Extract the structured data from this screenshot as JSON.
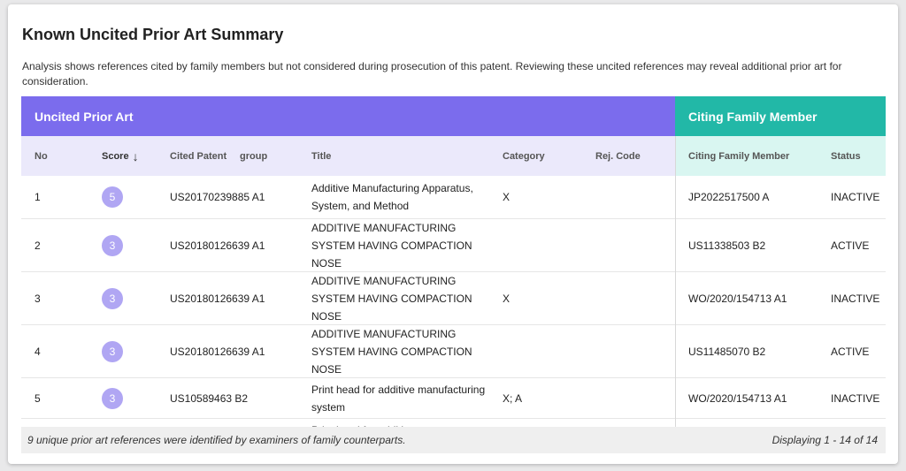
{
  "title": "Known Uncited Prior Art Summary",
  "description": "Analysis shows references cited by family members but not considered during prosecution of this patent. Reviewing these uncited references may reveal additional prior art for consideration.",
  "groups": {
    "left": "Uncited Prior Art",
    "right": "Citing Family Member"
  },
  "columns": {
    "no": "No",
    "score": "Score",
    "sort_icon": "↓",
    "cited_patent": "Cited Patent",
    "group": "group",
    "title": "Title",
    "category": "Category",
    "rej_code": "Rej. Code",
    "citing_family_member": "Citing Family Member",
    "status": "Status"
  },
  "colors": {
    "left_group": "#7b6ced",
    "right_group": "#22b8a7",
    "score_badge": "#b0a6f3"
  },
  "rows": [
    {
      "no": "1",
      "score": "5",
      "cited_patent": "US20170239885 A1",
      "title": "Additive Manufacturing Apparatus, System, and Method",
      "category": "X",
      "rej_code": "",
      "citing": "JP2022517500 A",
      "status": "INACTIVE"
    },
    {
      "no": "2",
      "score": "3",
      "cited_patent": "US20180126639 A1",
      "title": "ADDITIVE MANUFACTURING SYSTEM HAVING COMPACTION NOSE",
      "category": "",
      "rej_code": "",
      "citing": "US11338503 B2",
      "status": "ACTIVE"
    },
    {
      "no": "3",
      "score": "3",
      "cited_patent": "US20180126639 A1",
      "title": "ADDITIVE MANUFACTURING SYSTEM HAVING COMPACTION NOSE",
      "category": "X",
      "rej_code": "",
      "citing": "WO/2020/154713 A1",
      "status": "INACTIVE"
    },
    {
      "no": "4",
      "score": "3",
      "cited_patent": "US20180126639 A1",
      "title": "ADDITIVE MANUFACTURING SYSTEM HAVING COMPACTION NOSE",
      "category": "",
      "rej_code": "",
      "citing": "US11485070 B2",
      "status": "ACTIVE"
    },
    {
      "no": "5",
      "score": "3",
      "cited_patent": "US10589463 B2",
      "title": "Print head for additive manufacturing system",
      "category": "X; A",
      "rej_code": "",
      "citing": "WO/2020/154713 A1",
      "status": "INACTIVE"
    },
    {
      "no": "",
      "score": "",
      "cited_patent": "",
      "title": "Print head for additive",
      "category": "",
      "rej_code": "",
      "citing": "",
      "status": ""
    }
  ],
  "footer": {
    "summary": "9 unique prior art references were identified by examiners of family counterparts.",
    "paging": "Displaying 1 - 14 of 14"
  }
}
